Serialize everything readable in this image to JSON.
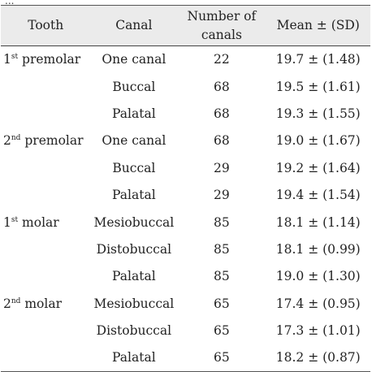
{
  "top_fragment": "...",
  "table": {
    "headers": {
      "tooth": "Tooth",
      "canal": "Canal",
      "number_line1": "Number of",
      "number_line2": "canals",
      "mean": "Mean ± (SD)"
    },
    "rows": [
      {
        "tooth_ord": "1",
        "tooth_sup": "st",
        "tooth_rest": " premolar",
        "canal": "One canal",
        "number": "22",
        "mean": "19.7 ± (1.48)"
      },
      {
        "tooth_ord": "",
        "tooth_sup": "",
        "tooth_rest": "",
        "canal": "Buccal",
        "number": "68",
        "mean": "19.5 ± (1.61)"
      },
      {
        "tooth_ord": "",
        "tooth_sup": "",
        "tooth_rest": "",
        "canal": "Palatal",
        "number": "68",
        "mean": "19.3 ± (1.55)"
      },
      {
        "tooth_ord": "2",
        "tooth_sup": "nd",
        "tooth_rest": " premolar",
        "canal": "One canal",
        "number": "68",
        "mean": "19.0 ± (1.67)"
      },
      {
        "tooth_ord": "",
        "tooth_sup": "",
        "tooth_rest": "",
        "canal": "Buccal",
        "number": "29",
        "mean": "19.2 ± (1.64)"
      },
      {
        "tooth_ord": "",
        "tooth_sup": "",
        "tooth_rest": "",
        "canal": "Palatal",
        "number": "29",
        "mean": "19.4 ± (1.54)"
      },
      {
        "tooth_ord": "1",
        "tooth_sup": "st",
        "tooth_rest": " molar",
        "canal": "Mesiobuccal",
        "number": "85",
        "mean": "18.1 ± (1.14)"
      },
      {
        "tooth_ord": "",
        "tooth_sup": "",
        "tooth_rest": "",
        "canal": "Distobuccal",
        "number": "85",
        "mean": "18.1 ± (0.99)"
      },
      {
        "tooth_ord": "",
        "tooth_sup": "",
        "tooth_rest": "",
        "canal": "Palatal",
        "number": "85",
        "mean": "19.0 ± (1.30)"
      },
      {
        "tooth_ord": "2",
        "tooth_sup": "nd",
        "tooth_rest": " molar",
        "canal": "Mesiobuccal",
        "number": "65",
        "mean": "17.4 ± (0.95)"
      },
      {
        "tooth_ord": "",
        "tooth_sup": "",
        "tooth_rest": "",
        "canal": "Distobuccal",
        "number": "65",
        "mean": "17.3 ± (1.01)"
      },
      {
        "tooth_ord": "",
        "tooth_sup": "",
        "tooth_rest": "",
        "canal": "Palatal",
        "number": "65",
        "mean": "18.2 ± (0.87)"
      }
    ]
  }
}
